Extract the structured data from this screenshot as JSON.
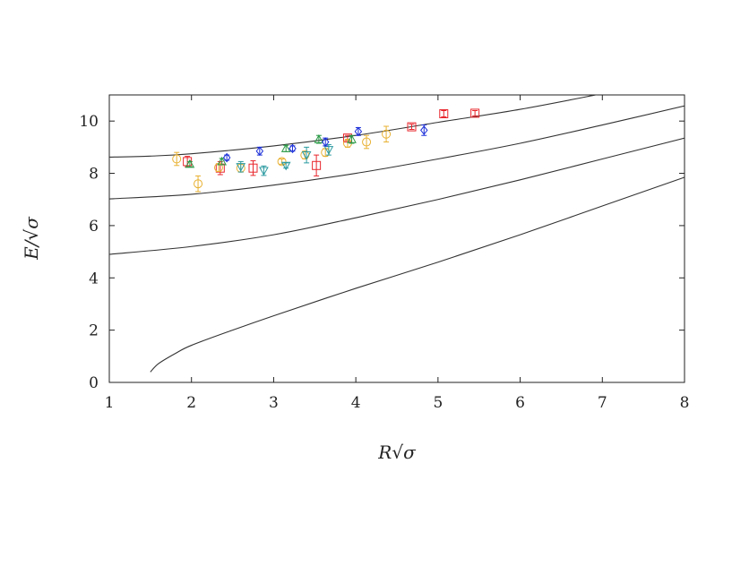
{
  "chart_data": {
    "type": "scatter",
    "title": "",
    "xlabel": "R√σ",
    "ylabel": "E/√σ",
    "xlim": [
      1,
      8
    ],
    "ylim": [
      0,
      11
    ],
    "x_ticks": [
      "1",
      "2",
      "3",
      "4",
      "5",
      "6",
      "7",
      "8"
    ],
    "y_ticks": [
      "0",
      "2",
      "4",
      "6",
      "8",
      "10"
    ],
    "grid": false,
    "legend": "none",
    "curves": [
      {
        "x": [
          1.0,
          1.5,
          2.0,
          3.0,
          4.0,
          5.0,
          6.0,
          7.0
        ],
        "y": [
          8.62,
          8.66,
          8.75,
          9.05,
          9.45,
          9.95,
          10.45,
          11.05
        ]
      },
      {
        "x": [
          1.0,
          2.0,
          3.0,
          4.0,
          5.0,
          6.0,
          7.0,
          8.0
        ],
        "y": [
          7.02,
          7.2,
          7.55,
          8.0,
          8.55,
          9.15,
          9.85,
          10.58
        ]
      },
      {
        "x": [
          1.0,
          2.0,
          3.0,
          4.0,
          5.0,
          6.0,
          7.0,
          8.0
        ],
        "y": [
          4.9,
          5.2,
          5.65,
          6.3,
          7.0,
          7.75,
          8.55,
          9.35
        ]
      },
      {
        "x": [
          1.5,
          1.6,
          1.8,
          2.0,
          2.5,
          3.0,
          4.0,
          5.0,
          6.0,
          7.0,
          8.0
        ],
        "y": [
          0.4,
          0.72,
          1.1,
          1.42,
          2.0,
          2.55,
          3.6,
          4.6,
          5.65,
          6.75,
          7.85
        ]
      }
    ],
    "series": [
      {
        "marker": "square",
        "color": "#e8262c",
        "points": [
          {
            "x": 1.95,
            "y": 8.45,
            "err": 0.2
          },
          {
            "x": 2.35,
            "y": 8.2,
            "err": 0.25
          },
          {
            "x": 2.75,
            "y": 8.2,
            "err": 0.28
          },
          {
            "x": 3.52,
            "y": 8.3,
            "err": 0.4
          },
          {
            "x": 3.9,
            "y": 9.35,
            "err": 0.1
          },
          {
            "x": 4.68,
            "y": 9.78,
            "err": 0.1
          },
          {
            "x": 5.07,
            "y": 10.28,
            "err": 0.12
          },
          {
            "x": 5.45,
            "y": 10.3,
            "err": 0.1
          }
        ]
      },
      {
        "marker": "circle",
        "color": "#e8b030",
        "points": [
          {
            "x": 1.82,
            "y": 8.55,
            "err": 0.25
          },
          {
            "x": 2.08,
            "y": 7.6,
            "err": 0.3
          },
          {
            "x": 2.33,
            "y": 8.22,
            "err": 0.15
          },
          {
            "x": 2.6,
            "y": 8.2,
            "err": 0.15
          },
          {
            "x": 3.1,
            "y": 8.45,
            "err": 0.1
          },
          {
            "x": 3.38,
            "y": 8.7,
            "err": 0.15
          },
          {
            "x": 3.63,
            "y": 8.8,
            "err": 0.15
          },
          {
            "x": 3.9,
            "y": 9.15,
            "err": 0.15
          },
          {
            "x": 4.13,
            "y": 9.2,
            "err": 0.25
          },
          {
            "x": 4.37,
            "y": 9.5,
            "err": 0.3
          }
        ]
      },
      {
        "marker": "triangle-up",
        "color": "#2a9a46",
        "points": [
          {
            "x": 1.98,
            "y": 8.35,
            "err": 0.1
          },
          {
            "x": 2.37,
            "y": 8.45,
            "err": 0.12
          },
          {
            "x": 3.15,
            "y": 8.95,
            "err": 0.12
          },
          {
            "x": 3.55,
            "y": 9.3,
            "err": 0.15
          },
          {
            "x": 3.95,
            "y": 9.3,
            "err": 0.15
          }
        ]
      },
      {
        "marker": "triangle-down",
        "color": "#2a9aa0",
        "points": [
          {
            "x": 2.6,
            "y": 8.25,
            "err": 0.2
          },
          {
            "x": 2.88,
            "y": 8.1,
            "err": 0.18
          },
          {
            "x": 3.15,
            "y": 8.3,
            "err": 0.1
          },
          {
            "x": 3.4,
            "y": 8.7,
            "err": 0.3
          },
          {
            "x": 3.67,
            "y": 8.9,
            "err": 0.2
          }
        ]
      },
      {
        "marker": "diamond",
        "color": "#1a2ed8",
        "points": [
          {
            "x": 2.43,
            "y": 8.6,
            "err": 0.1
          },
          {
            "x": 2.83,
            "y": 8.85,
            "err": 0.15
          },
          {
            "x": 3.23,
            "y": 8.95,
            "err": 0.1
          },
          {
            "x": 3.63,
            "y": 9.2,
            "err": 0.15
          },
          {
            "x": 4.03,
            "y": 9.6,
            "err": 0.15
          },
          {
            "x": 4.83,
            "y": 9.65,
            "err": 0.2
          }
        ]
      }
    ]
  }
}
